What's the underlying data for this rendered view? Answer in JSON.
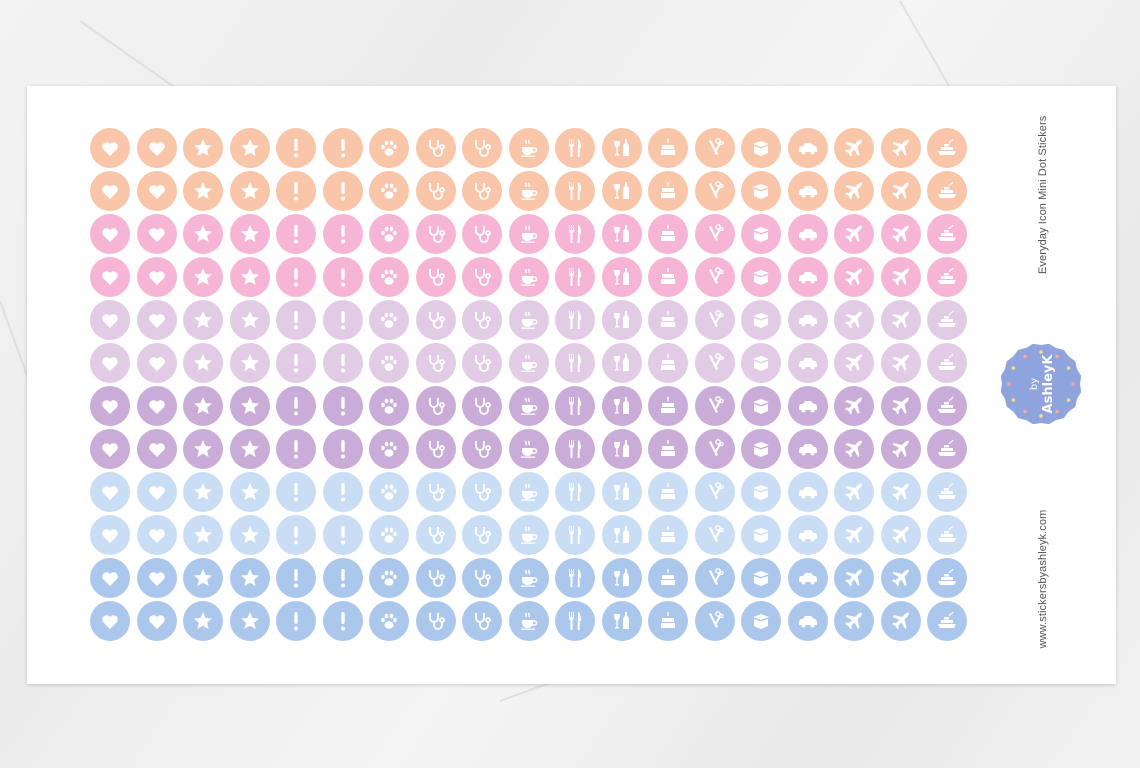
{
  "sheet": {
    "title": "Everyday Icon Mini Dot Stickers",
    "website": "www.stickersbyashleyk.com",
    "logo": {
      "text_line1": "by",
      "text_line2": "AshleyK",
      "color": "#8fa4dc",
      "heart_colors": [
        "#f6a9a0",
        "#f5dc86"
      ]
    }
  },
  "icons": [
    "heart",
    "heart",
    "star",
    "star",
    "exclamation",
    "exclamation",
    "paw",
    "stethoscope",
    "stethoscope",
    "coffee-cup",
    "fork-knife",
    "wine",
    "cake",
    "hair-clip",
    "box",
    "car",
    "airplane",
    "airplane",
    "ship"
  ],
  "rows": [
    {
      "color": "#f9c6a9"
    },
    {
      "color": "#f9c6a9"
    },
    {
      "color": "#f6b5d4"
    },
    {
      "color": "#f6b5d4"
    },
    {
      "color": "#e2cbe4"
    },
    {
      "color": "#e2cbe4"
    },
    {
      "color": "#c9acd7"
    },
    {
      "color": "#c9acd7"
    },
    {
      "color": "#c9def5"
    },
    {
      "color": "#c9def5"
    },
    {
      "color": "#abc8ec"
    },
    {
      "color": "#abc8ec"
    }
  ]
}
